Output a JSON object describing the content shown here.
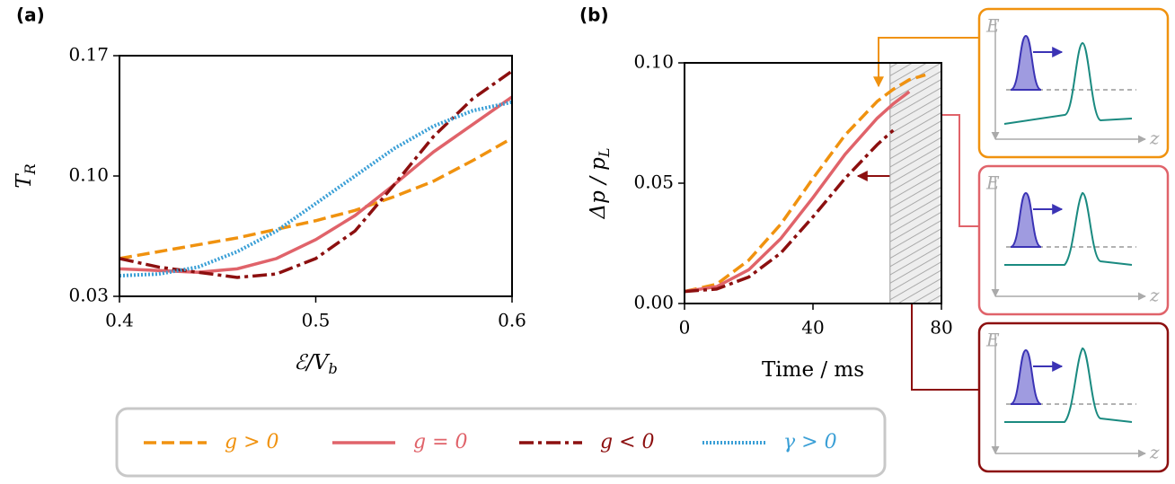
{
  "chart_data": [
    {
      "type": "line",
      "panel": "(a)",
      "xlabel": {
        "text": "ℰ/V",
        "sub": "b"
      },
      "ylabel": {
        "text": "T",
        "sub": "R"
      },
      "x": [
        0.4,
        0.42,
        0.44,
        0.46,
        0.48,
        0.5,
        0.52,
        0.54,
        0.56,
        0.58,
        0.6
      ],
      "xlim": [
        0.4,
        0.6
      ],
      "xticks": [
        0.4,
        0.5,
        0.6
      ],
      "ylim": [
        0.03,
        0.17
      ],
      "yticks": [
        {
          "value": 0.03,
          "label": "0.03"
        },
        {
          "value": 0.1,
          "label": "0.10"
        },
        {
          "value": 0.17,
          "label": "0.17"
        }
      ],
      "series": [
        {
          "name": "g > 0",
          "color": "#f0920f",
          "style": "dashed",
          "values": [
            0.052,
            0.056,
            0.06,
            0.064,
            0.069,
            0.074,
            0.08,
            0.088,
            0.097,
            0.109,
            0.122
          ]
        },
        {
          "name": "g = 0",
          "color": "#e0636a",
          "style": "solid",
          "values": [
            0.046,
            0.045,
            0.044,
            0.046,
            0.052,
            0.063,
            0.077,
            0.095,
            0.114,
            0.13,
            0.146
          ]
        },
        {
          "name": "g < 0",
          "color": "#8c0f0f",
          "style": "dashdot",
          "values": [
            0.052,
            0.047,
            0.044,
            0.041,
            0.043,
            0.052,
            0.068,
            0.095,
            0.123,
            0.145,
            0.161
          ]
        },
        {
          "name": "γ > 0",
          "color": "#3a9fd6",
          "style": "dotted",
          "values": [
            0.042,
            0.043,
            0.047,
            0.056,
            0.068,
            0.084,
            0.1,
            0.116,
            0.129,
            0.138,
            0.143
          ]
        }
      ]
    },
    {
      "type": "line",
      "panel": "(b)",
      "xlabel": {
        "text": "Time / ms"
      },
      "ylabel": {
        "text": "Δp / p",
        "sub": "L"
      },
      "x": [
        0,
        10,
        20,
        30,
        40,
        50,
        60,
        65,
        70,
        75
      ],
      "xlim": [
        0,
        80
      ],
      "xticks": [
        0,
        40,
        80
      ],
      "ylim": [
        0,
        0.1
      ],
      "yticks": [
        {
          "value": 0,
          "label": "0.00"
        },
        {
          "value": 0.05,
          "label": "0.05"
        },
        {
          "value": 0.1,
          "label": "0.10"
        }
      ],
      "shaded_xlim": [
        64,
        80
      ],
      "series": [
        {
          "color": "#f0920f",
          "style": "dashed",
          "values": [
            0.005,
            0.008,
            0.018,
            0.033,
            0.052,
            0.07,
            0.084,
            0.089,
            0.093,
            0.095
          ]
        },
        {
          "color": "#e0636a",
          "style": "solid",
          "values": [
            0.005,
            0.007,
            0.014,
            0.027,
            0.044,
            0.062,
            0.077,
            0.083,
            0.088,
            null
          ]
        },
        {
          "color": "#8c0f0f",
          "style": "dashdot",
          "values": [
            0.005,
            0.006,
            0.011,
            0.021,
            0.036,
            0.052,
            0.066,
            0.072,
            null,
            null
          ]
        }
      ],
      "insets": [
        {
          "ylabel": "E",
          "xlabel": "z",
          "color": "#f0920f"
        },
        {
          "ylabel": "E",
          "xlabel": "z",
          "color": "#e0636a"
        },
        {
          "ylabel": "E",
          "xlabel": "z",
          "color": "#8c0f0f"
        }
      ]
    }
  ]
}
